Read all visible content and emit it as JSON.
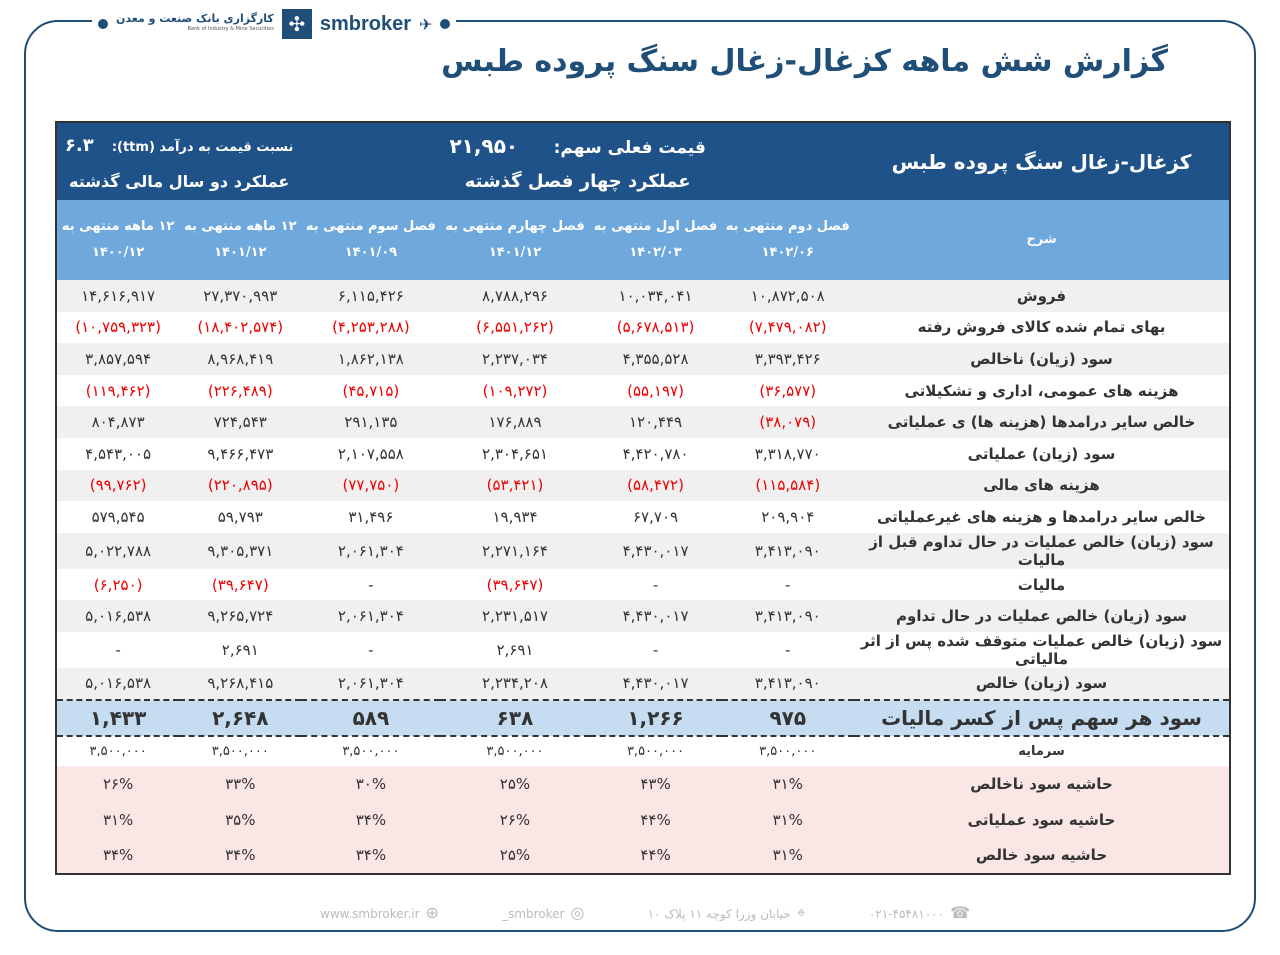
{
  "brand": {
    "bank_name": "کارگزاری بانک صنعت و معدن",
    "bank_en": "Bank of Industry & Mine Securities",
    "site_name": "smbroker"
  },
  "title": "گزارش شش ماهه کزغال-زغال سنگ پروده طبس",
  "header": {
    "company": "کزغال-زغال سنگ پروده طبس",
    "price_label": "قیمت فعلی سهم:",
    "price": "۲۱,۹۵۰",
    "pe_label": "نسبت  قیمت به درآمد (ttm):",
    "pe": "۶.۳",
    "quarters_label": "عملکرد چهار فصل گذشته",
    "years_label": "عملکرد دو سال مالی گذشته"
  },
  "columns": {
    "desc": "شرح",
    "cols": [
      {
        "label": "فصل دوم منتهی به",
        "date": "۱۴۰۲/۰۶"
      },
      {
        "label": "فصل اول منتهی به",
        "date": "۱۴۰۲/۰۳"
      },
      {
        "label": "فصل چهارم منتهی به",
        "date": "۱۴۰۱/۱۲"
      },
      {
        "label": "فصل سوم منتهی به",
        "date": "۱۴۰۱/۰۹"
      },
      {
        "label": "۱۲ ماهه منتهی به",
        "date": "۱۴۰۱/۱۲"
      },
      {
        "label": "۱۲ ماهه منتهی به",
        "date": "۱۴۰۰/۱۲"
      }
    ]
  },
  "rows": [
    {
      "label": "فروش",
      "values": [
        "۱۰,۸۷۲,۵۰۸",
        "۱۰,۰۳۴,۰۴۱",
        "۸,۷۸۸,۲۹۶",
        "۶,۱۱۵,۴۲۶",
        "۲۷,۳۷۰,۹۹۳",
        "۱۴,۶۱۶,۹۱۷"
      ]
    },
    {
      "label": "بهای تمام شده کالای فروش رفته",
      "values": [
        "(۷,۴۷۹,۰۸۲)",
        "(۵,۶۷۸,۵۱۳)",
        "(۶,۵۵۱,۲۶۲)",
        "(۴,۲۵۳,۲۸۸)",
        "(۱۸,۴۰۲,۵۷۴)",
        "(۱۰,۷۵۹,۳۲۳)"
      ]
    },
    {
      "label": "سود (زیان) ناخالص",
      "values": [
        "۳,۳۹۳,۴۲۶",
        "۴,۳۵۵,۵۲۸",
        "۲,۲۳۷,۰۳۴",
        "۱,۸۶۲,۱۳۸",
        "۸,۹۶۸,۴۱۹",
        "۳,۸۵۷,۵۹۴"
      ]
    },
    {
      "label": "هزینه های عمومی، اداری و تشکیلاتی",
      "values": [
        "(۳۶,۵۷۷)",
        "(۵۵,۱۹۷)",
        "(۱۰۹,۲۷۲)",
        "(۴۵,۷۱۵)",
        "(۲۲۶,۴۸۹)",
        "(۱۱۹,۴۶۲)"
      ]
    },
    {
      "label": "خالص سایر درامدها (هزینه ها) ی عملیاتی",
      "values": [
        "(۳۸,۰۷۹)",
        "۱۲۰,۴۴۹",
        "۱۷۶,۸۸۹",
        "۲۹۱,۱۳۵",
        "۷۲۴,۵۴۳",
        "۸۰۴,۸۷۳"
      ]
    },
    {
      "label": "سود (زیان) عملیاتی",
      "values": [
        "۳,۳۱۸,۷۷۰",
        "۴,۴۲۰,۷۸۰",
        "۲,۳۰۴,۶۵۱",
        "۲,۱۰۷,۵۵۸",
        "۹,۴۶۶,۴۷۳",
        "۴,۵۴۳,۰۰۵"
      ]
    },
    {
      "label": "هزینه های مالی",
      "values": [
        "(۱۱۵,۵۸۴)",
        "(۵۸,۴۷۲)",
        "(۵۳,۴۲۱)",
        "(۷۷,۷۵۰)",
        "(۲۲۰,۸۹۵)",
        "(۹۹,۷۶۲)"
      ]
    },
    {
      "label": "خالص سایر درامدها و هزینه های غیرعملیاتی",
      "values": [
        "۲۰۹,۹۰۴",
        "۶۷,۷۰۹",
        "۱۹,۹۳۴",
        "۳۱,۴۹۶",
        "۵۹,۷۹۳",
        "۵۷۹,۵۴۵"
      ]
    },
    {
      "label": "سود (زیان) خالص عملیات در حال تداوم قبل از مالیات",
      "values": [
        "۳,۴۱۳,۰۹۰",
        "۴,۴۳۰,۰۱۷",
        "۲,۲۷۱,۱۶۴",
        "۲,۰۶۱,۳۰۴",
        "۹,۳۰۵,۳۷۱",
        "۵,۰۲۲,۷۸۸"
      ]
    },
    {
      "label": "مالیات",
      "values": [
        "-",
        "-",
        "(۳۹,۶۴۷)",
        "-",
        "(۳۹,۶۴۷)",
        "(۶,۲۵۰)"
      ]
    },
    {
      "label": "سود (زیان) خالص عملیات در حال تداوم",
      "values": [
        "۳,۴۱۳,۰۹۰",
        "۴,۴۳۰,۰۱۷",
        "۲,۲۳۱,۵۱۷",
        "۲,۰۶۱,۳۰۴",
        "۹,۲۶۵,۷۲۴",
        "۵,۰۱۶,۵۳۸"
      ]
    },
    {
      "label": "سود (زیان) خالص عملیات متوقف شده پس از اثر مالیاتی",
      "values": [
        "-",
        "-",
        "۲,۶۹۱",
        "-",
        "۲,۶۹۱",
        "-"
      ]
    },
    {
      "label": "سود (زیان) خالص",
      "values": [
        "۳,۴۱۳,۰۹۰",
        "۴,۴۳۰,۰۱۷",
        "۲,۲۳۴,۲۰۸",
        "۲,۰۶۱,۳۰۴",
        "۹,۲۶۸,۴۱۵",
        "۵,۰۱۶,۵۳۸"
      ]
    }
  ],
  "eps": {
    "label": "سود هر سهم پس از کسر مالیات",
    "values": [
      "۹۷۵",
      "۱,۲۶۶",
      "۶۳۸",
      "۵۸۹",
      "۲,۶۴۸",
      "۱,۴۳۳"
    ]
  },
  "capital": {
    "label": "سرمایه",
    "values": [
      "۳,۵۰۰,۰۰۰",
      "۳,۵۰۰,۰۰۰",
      "۳,۵۰۰,۰۰۰",
      "۳,۵۰۰,۰۰۰",
      "۳,۵۰۰,۰۰۰",
      "۳,۵۰۰,۰۰۰"
    ]
  },
  "margins": [
    {
      "label": "حاشیه سود ناخالص",
      "values": [
        "۳۱%",
        "۴۳%",
        "۲۵%",
        "۳۰%",
        "۳۳%",
        "۲۶%"
      ]
    },
    {
      "label": "حاشیه سود عملیاتی",
      "values": [
        "۳۱%",
        "۴۴%",
        "۲۶%",
        "۳۴%",
        "۳۵%",
        "۳۱%"
      ]
    },
    {
      "label": "حاشیه سود خالص",
      "values": [
        "۳۱%",
        "۴۴%",
        "۲۵%",
        "۳۴%",
        "۳۴%",
        "۳۴%"
      ]
    }
  ],
  "footer": {
    "phone": "۰۲۱-۴۵۴۸۱۰۰۰",
    "address": "خیابان وزرا کوچه ۱۱ پلاک ۱۰",
    "instagram": "smbroker_",
    "website": "www.smbroker.ir"
  },
  "colors": {
    "brand": "#1f4e79",
    "header_dark": "#1f5288",
    "header_light": "#6fa8dc",
    "eps_bg": "#c5dcf1",
    "margin_bg": "#fbe6e6",
    "negative": "#e00000"
  }
}
